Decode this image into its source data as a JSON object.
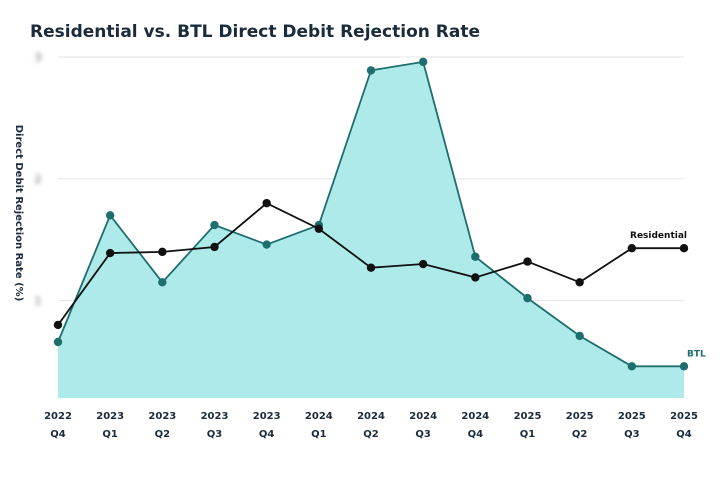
{
  "chart_data": {
    "type": "line",
    "title": "Residential vs. BTL Direct Debit Rejection Rate",
    "y_label": "Direct Debit  Rejection Rate (%)",
    "categories": [
      "2022\nQ4",
      "2023\nQ1",
      "2023\nQ2",
      "2023\nQ3",
      "2023\nQ4",
      "2024\nQ1",
      "2024\nQ2",
      "2024\nQ3",
      "2024\nQ4",
      "2025\nQ1",
      "2025\nQ2",
      "2025\nQ3",
      "2025\nQ4"
    ],
    "series": [
      {
        "name": "BTL",
        "color": "#1e6e6e",
        "fill": "#aeeaea",
        "values": [
          0.66,
          1.7,
          1.15,
          1.62,
          1.46,
          1.62,
          2.89,
          2.96,
          1.36,
          1.02,
          0.71,
          0.46,
          0.46
        ]
      },
      {
        "name": "Residential",
        "color": "#111111",
        "values": [
          0.8,
          1.39,
          1.4,
          1.44,
          1.8,
          1.59,
          1.27,
          1.3,
          1.19,
          1.32,
          1.15,
          1.43,
          1.43
        ]
      }
    ],
    "ylim": [
      0.2,
      3.0
    ],
    "yticks": [
      1,
      2,
      3
    ],
    "grid": true
  }
}
